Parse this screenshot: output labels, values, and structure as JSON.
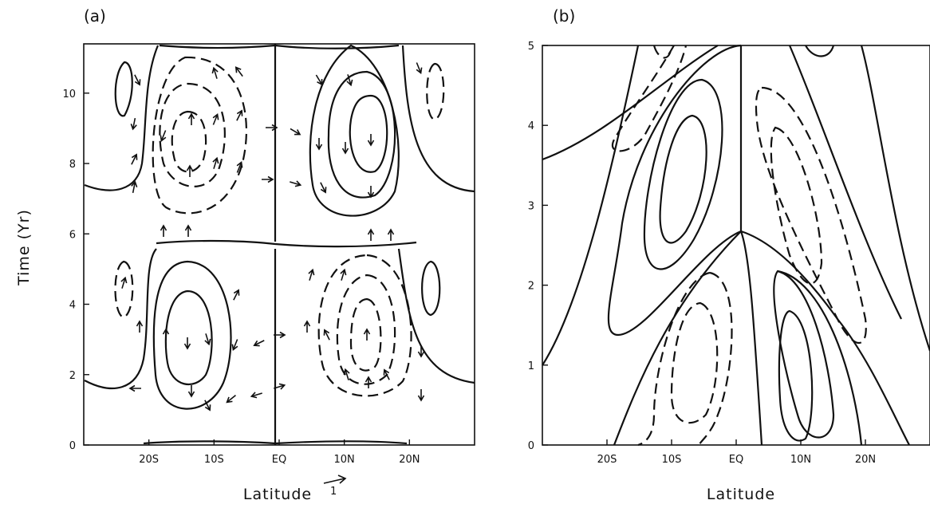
{
  "chart_data": [
    {
      "panel": "(a)",
      "type": "contour",
      "xlabel": "Latitude",
      "ylabel": "Time (Yr)",
      "x_ticks": [
        "20S",
        "10S",
        "EQ",
        "10N",
        "20N"
      ],
      "x_tick_values": [
        -20,
        -10,
        0,
        10,
        20
      ],
      "xlim": [
        -30,
        30
      ],
      "y_ticks": [
        "0",
        "2",
        "4",
        "6",
        "8",
        "10"
      ],
      "y_tick_values": [
        0,
        2,
        4,
        6,
        8,
        10
      ],
      "ylim": [
        0,
        11.4
      ],
      "reference_vector_label": "1",
      "vector_field": true
    },
    {
      "panel": "(b)",
      "type": "contour",
      "xlabel": "Latitude",
      "x_ticks": [
        "20S",
        "10S",
        "EQ",
        "10N",
        "20N"
      ],
      "x_tick_values": [
        -20,
        -10,
        0,
        10,
        20
      ],
      "xlim": [
        -30,
        30
      ],
      "y_ticks": [
        "0",
        "1",
        "2",
        "3",
        "4",
        "5"
      ],
      "y_tick_values": [
        0,
        1,
        2,
        3,
        4,
        5
      ],
      "ylim": [
        0,
        5
      ]
    }
  ]
}
